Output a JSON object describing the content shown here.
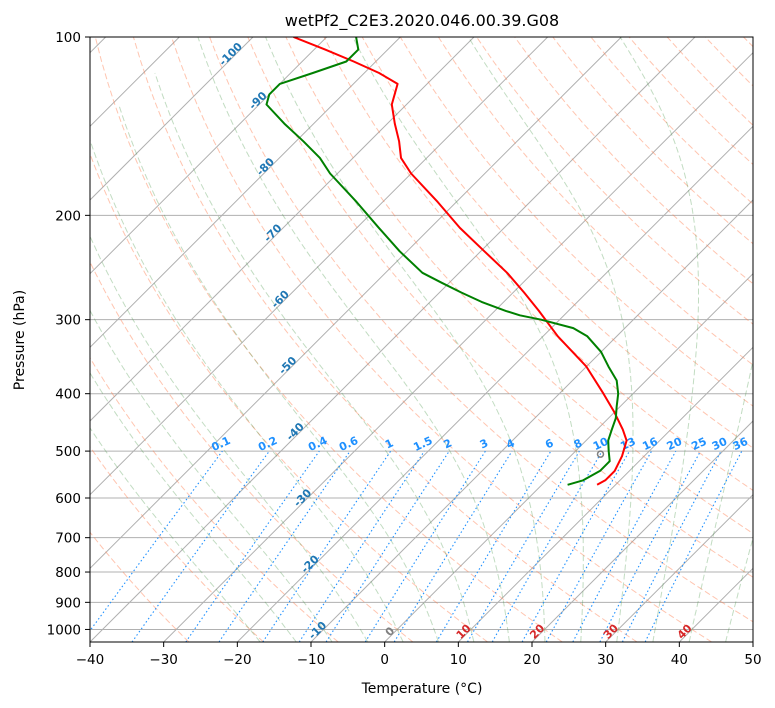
{
  "chart_data": {
    "type": "line",
    "title": "wetPf2_C2E3.2020.046.00.39.G08",
    "xlabel": "Temperature (°C)",
    "ylabel": "Pressure (hPa)",
    "xlim": [
      -40,
      50
    ],
    "ylim": [
      1050,
      100
    ],
    "y_scale": "log",
    "grid": true,
    "x_ticks": [
      -40,
      -30,
      -20,
      -10,
      0,
      10,
      20,
      30,
      40,
      50
    ],
    "y_ticks": [
      100,
      200,
      300,
      400,
      500,
      600,
      700,
      800,
      900,
      1000
    ],
    "skew_degrees": 45,
    "colors": {
      "temperature": "#ff0000",
      "dewpoint": "#008000",
      "isotherm_grid": "#b0b0b0",
      "dry_adiabat": "#ff7f50",
      "moist_adiabat": "#4f9a4f",
      "mixing_ratio": "#1e90ff",
      "isotherm_label": "#1f77b4",
      "lcl_marker": "#808080"
    },
    "series": [
      {
        "role": "temperature",
        "p": [
          570,
          560,
          540,
          510,
          480,
          460,
          430,
          400,
          360,
          320,
          290,
          270,
          250,
          230,
          210,
          190,
          170,
          160,
          150,
          140,
          130,
          120,
          115,
          110,
          105,
          100
        ],
        "t": [
          7.5,
          8.0,
          8.0,
          7.0,
          5.5,
          3.5,
          0.0,
          -4.0,
          -10.0,
          -18.0,
          -24.0,
          -28.5,
          -33.5,
          -39.5,
          -46.0,
          -52.5,
          -60.0,
          -63.5,
          -66.0,
          -69.0,
          -72.0,
          -74.0,
          -78.0,
          -83.0,
          -88.5,
          -94.5
        ]
      },
      {
        "role": "dewpoint",
        "p": [
          570,
          560,
          540,
          520,
          500,
          480,
          460,
          440,
          420,
          400,
          380,
          360,
          340,
          320,
          310,
          300,
          295,
          290,
          280,
          270,
          260,
          250,
          230,
          210,
          190,
          170,
          160,
          150,
          140,
          130,
          125,
          120,
          115,
          110,
          105,
          100
        ],
        "t": [
          3.5,
          5.0,
          6.0,
          6.0,
          4.5,
          3.0,
          2.0,
          1.0,
          -0.5,
          -2.0,
          -4.0,
          -7.0,
          -10.0,
          -14.0,
          -17.0,
          -22.5,
          -26.0,
          -28.5,
          -33.0,
          -37.0,
          -41.0,
          -45.0,
          -51.0,
          -57.0,
          -63.5,
          -71.0,
          -74.5,
          -79.0,
          -84.0,
          -89.0,
          -90.0,
          -90.0,
          -87.0,
          -84.0,
          -84.0,
          -86.0
        ]
      }
    ],
    "isotherm_labels": [
      "-100",
      "-90",
      "-80",
      "-70",
      "-60",
      "-50",
      "-40",
      "-30",
      "-20",
      "-10",
      "0",
      "10",
      "20",
      "30",
      "40"
    ],
    "mixing_ratio_labels": [
      "0.1",
      "0.2",
      "0.4",
      "0.6",
      "1",
      "1.5",
      "2",
      "3",
      "4",
      "6",
      "8",
      "10",
      "13",
      "16",
      "20",
      "25",
      "30",
      "36"
    ],
    "lcl": {
      "p": 506,
      "t": 3.8
    }
  }
}
